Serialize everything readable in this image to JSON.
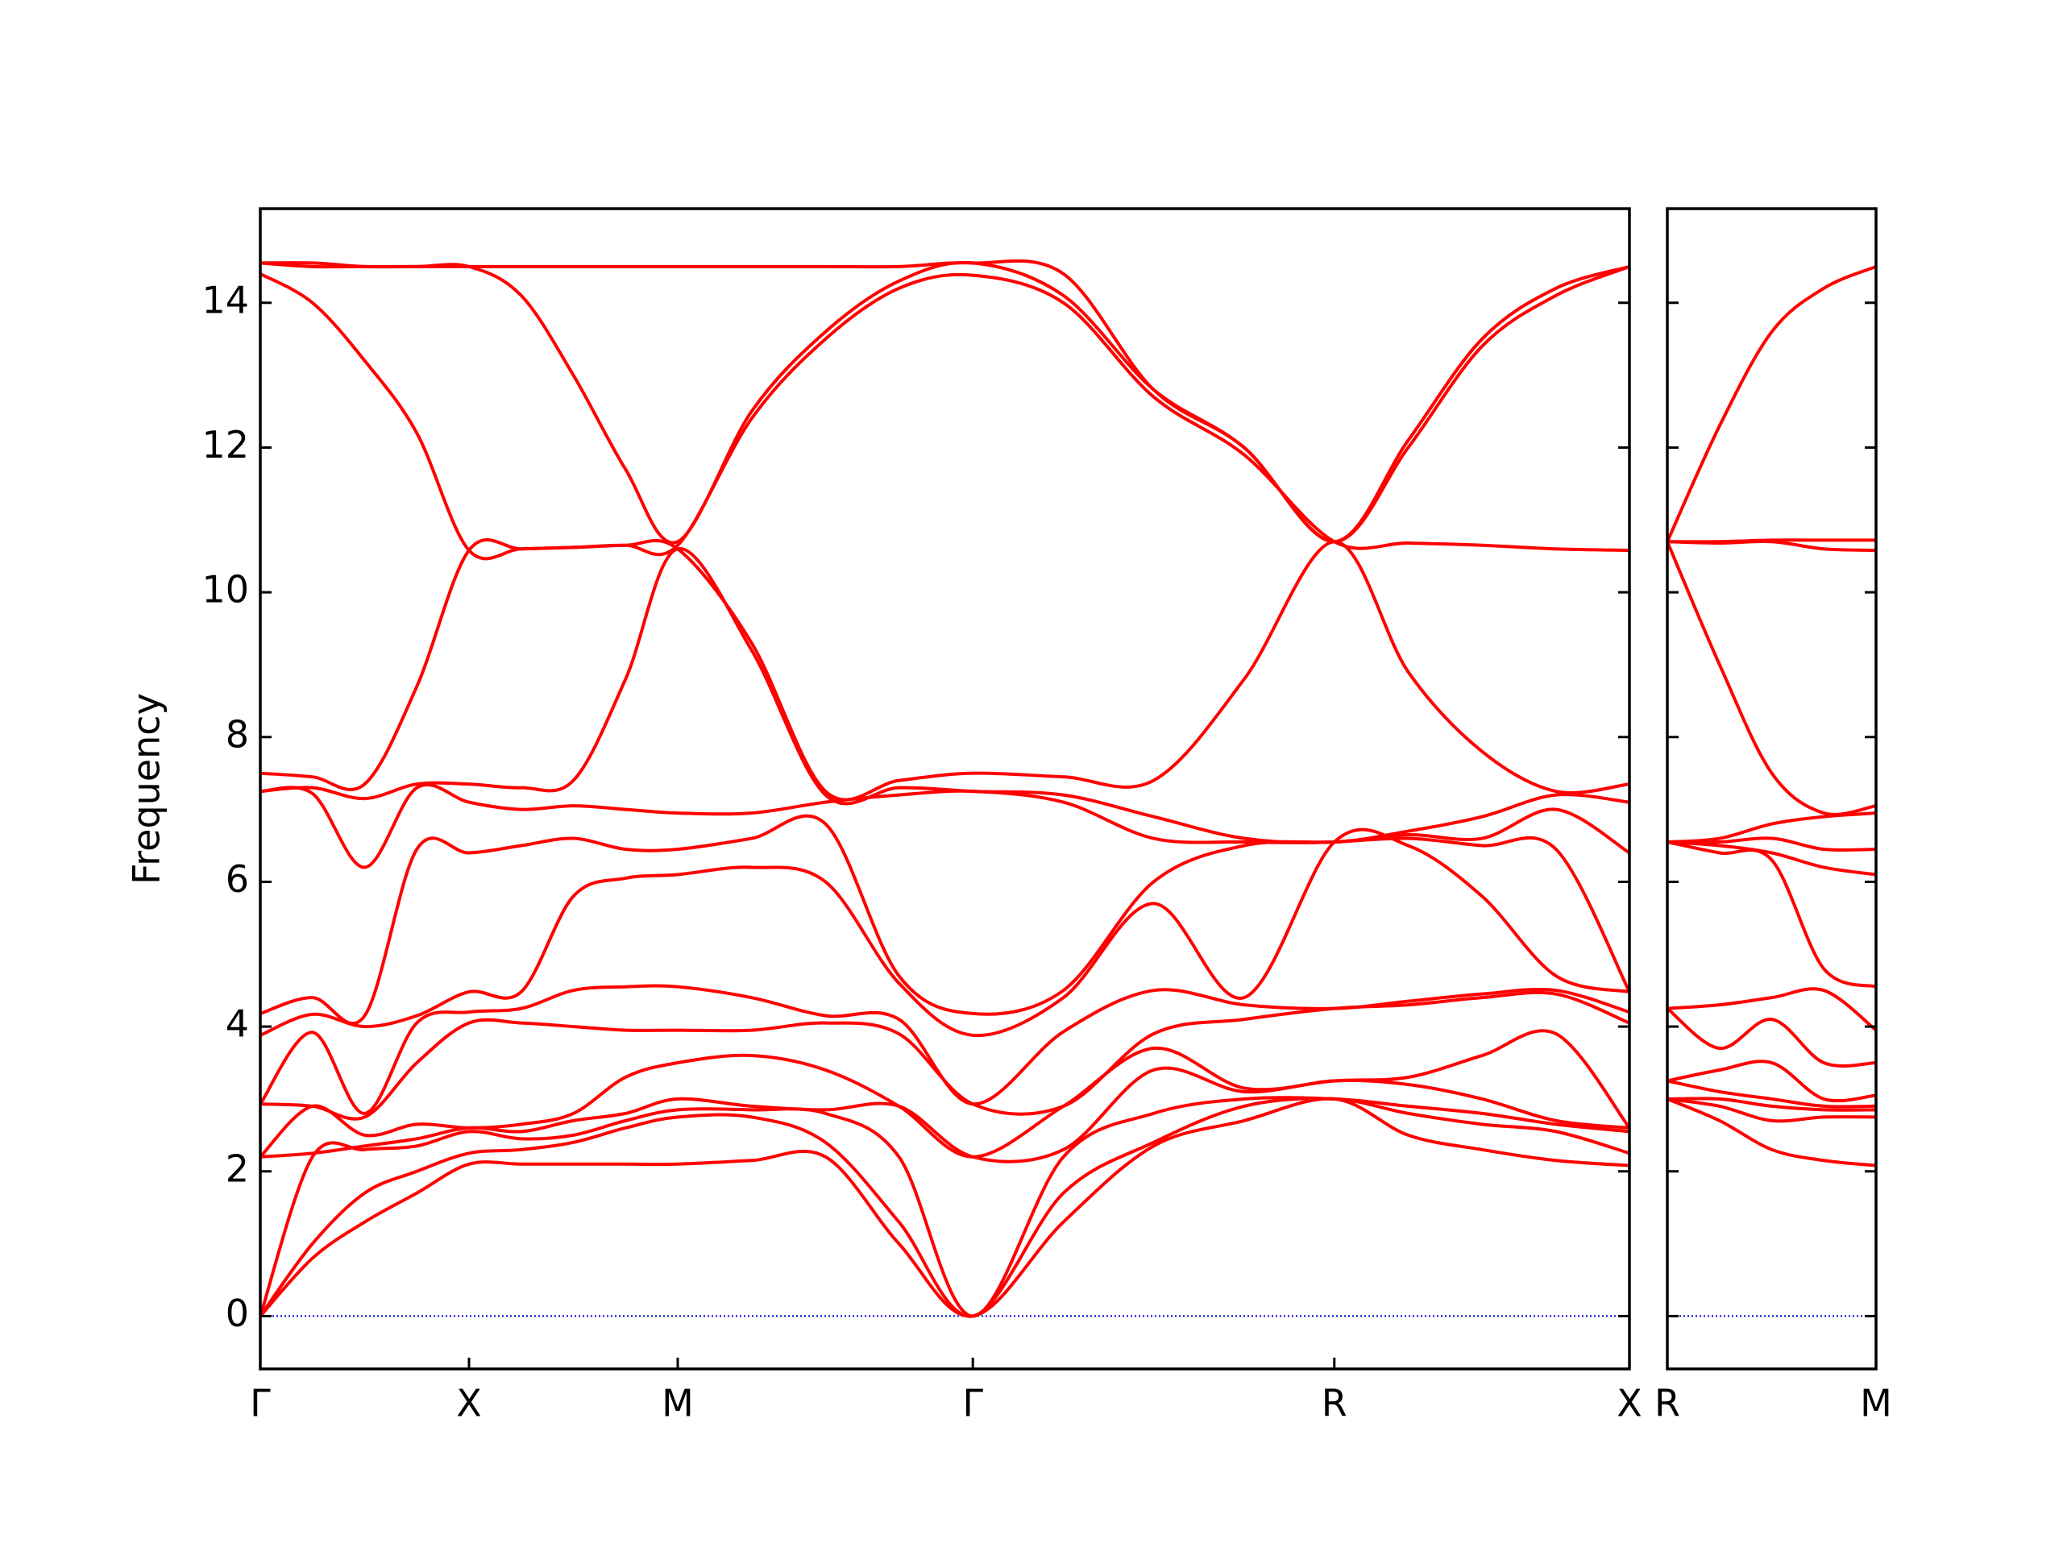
{
  "chart_data": [
    {
      "type": "line",
      "y_label": "Frequency",
      "color": "#ff0000",
      "reference_line": 0,
      "reference_color": "#0000cc",
      "show_ytick_labels": true,
      "xlim": [
        0,
        3.28
      ],
      "ylim": [
        -0.73,
        15.3
      ],
      "xticks": [
        {
          "value": 0,
          "label": "Γ"
        },
        {
          "value": 0.5,
          "label": "X"
        },
        {
          "value": 1.0,
          "label": "M"
        },
        {
          "value": 1.707,
          "label": "Γ"
        },
        {
          "value": 2.573,
          "label": "R"
        },
        {
          "value": 3.28,
          "label": "X"
        }
      ],
      "yticks": [
        0,
        2,
        4,
        6,
        8,
        10,
        12,
        14
      ],
      "x": [
        0,
        0.125,
        0.25,
        0.375,
        0.5,
        0.625,
        0.75,
        0.875,
        1.0,
        1.177,
        1.354,
        1.53,
        1.707,
        1.924,
        2.14,
        2.357,
        2.573,
        2.75,
        2.927,
        3.104,
        3.28
      ],
      "series": [
        {
          "values": [
            0,
            0.8,
            1.3,
            1.7,
            2.1,
            2.1,
            2.1,
            2.1,
            2.1,
            2.15,
            2.2,
            1.0,
            0,
            1.3,
            2.35,
            2.7,
            3.0,
            2.5,
            2.3,
            2.15,
            2.08
          ]
        },
        {
          "values": [
            0,
            1.0,
            1.7,
            2.0,
            2.25,
            2.3,
            2.4,
            2.6,
            2.75,
            2.75,
            2.4,
            1.3,
            0,
            1.7,
            2.4,
            2.9,
            3.0,
            2.8,
            2.65,
            2.55,
            2.25
          ]
        },
        {
          "values": [
            0,
            2.2,
            2.3,
            2.35,
            2.55,
            2.45,
            2.5,
            2.7,
            2.85,
            2.85,
            2.8,
            2.2,
            0,
            2.2,
            2.8,
            3.0,
            3.0,
            2.9,
            2.8,
            2.65,
            2.55
          ]
        },
        {
          "values": [
            2.2,
            2.25,
            2.35,
            2.45,
            2.6,
            2.55,
            2.7,
            2.8,
            3.0,
            2.9,
            2.85,
            2.9,
            2.2,
            2.3,
            3.4,
            3.1,
            3.25,
            3.2,
            3.0,
            2.7,
            2.6
          ]
        },
        {
          "values": [
            2.2,
            2.9,
            2.5,
            2.65,
            2.6,
            2.65,
            2.8,
            3.3,
            3.5,
            3.6,
            3.4,
            2.9,
            2.2,
            2.9,
            3.7,
            3.15,
            3.25,
            3.3,
            3.6,
            3.9,
            2.6
          ]
        },
        {
          "values": [
            2.93,
            2.9,
            2.75,
            3.5,
            4.05,
            4.05,
            4.0,
            3.95,
            3.95,
            3.95,
            4.05,
            3.9,
            2.93,
            2.9,
            3.9,
            4.1,
            4.25,
            4.3,
            4.4,
            4.45,
            4.05
          ]
        },
        {
          "values": [
            2.93,
            3.92,
            2.8,
            4.05,
            4.2,
            4.25,
            4.5,
            4.55,
            4.55,
            4.4,
            4.15,
            4.1,
            2.93,
            3.93,
            4.5,
            4.3,
            4.25,
            4.35,
            4.45,
            4.5,
            4.2
          ]
        },
        {
          "values": [
            3.88,
            4.17,
            4.0,
            4.15,
            4.48,
            4.48,
            5.8,
            6.05,
            6.1,
            6.2,
            6.0,
            4.6,
            3.88,
            4.4,
            5.7,
            4.4,
            6.55,
            6.5,
            5.8,
            4.7,
            4.48
          ]
        },
        {
          "values": [
            4.18,
            4.4,
            4.15,
            6.45,
            6.4,
            6.5,
            6.6,
            6.45,
            6.45,
            6.6,
            6.8,
            4.7,
            4.18,
            4.5,
            6.0,
            6.5,
            6.55,
            6.6,
            6.5,
            6.45,
            4.48
          ]
        },
        {
          "values": [
            7.25,
            7.22,
            6.2,
            7.3,
            7.1,
            7.0,
            7.05,
            7.0,
            6.95,
            6.95,
            7.1,
            7.2,
            7.25,
            7.1,
            6.6,
            6.55,
            6.55,
            6.65,
            6.6,
            7.0,
            6.4
          ]
        },
        {
          "values": [
            7.25,
            7.3,
            7.15,
            7.35,
            7.35,
            7.3,
            7.4,
            8.8,
            10.6,
            9.2,
            7.2,
            7.3,
            7.25,
            7.2,
            6.9,
            6.6,
            6.55,
            6.7,
            6.9,
            7.2,
            7.1
          ]
        },
        {
          "values": [
            7.5,
            7.45,
            7.35,
            8.7,
            10.58,
            10.6,
            10.62,
            10.65,
            10.6,
            9.3,
            7.25,
            7.4,
            7.5,
            7.45,
            7.4,
            8.8,
            10.7,
            8.9,
            7.8,
            7.25,
            7.35
          ]
        },
        {
          "values": [
            14.4,
            14.0,
            13.2,
            12.2,
            10.58,
            10.6,
            10.62,
            10.65,
            10.65,
            12.4,
            13.5,
            14.2,
            14.38,
            14.0,
            12.7,
            11.9,
            10.7,
            10.68,
            10.65,
            10.6,
            10.58
          ]
        },
        {
          "values": [
            14.55,
            14.5,
            14.5,
            14.5,
            14.5,
            14.1,
            13.0,
            11.7,
            10.7,
            12.5,
            13.6,
            14.3,
            14.55,
            14.1,
            12.8,
            12.0,
            10.7,
            12.0,
            13.4,
            14.1,
            14.5
          ]
        },
        {
          "values": [
            14.55,
            14.55,
            14.5,
            14.5,
            14.5,
            14.5,
            14.5,
            14.5,
            14.5,
            14.5,
            14.5,
            14.5,
            14.55,
            14.4,
            12.8,
            12.0,
            10.7,
            12.1,
            13.5,
            14.2,
            14.5
          ]
        }
      ]
    },
    {
      "type": "line",
      "color": "#ff0000",
      "reference_line": 0,
      "reference_color": "#0000cc",
      "show_ytick_labels": false,
      "xlim": [
        0,
        0.707
      ],
      "ylim": [
        -0.73,
        15.3
      ],
      "xticks": [
        {
          "value": 0,
          "label": "R"
        },
        {
          "value": 0.707,
          "label": "M"
        }
      ],
      "yticks": [
        0,
        2,
        4,
        6,
        8,
        10,
        12,
        14
      ],
      "x": [
        0,
        0.177,
        0.354,
        0.53,
        0.707
      ],
      "series": [
        {
          "values": [
            3.0,
            2.7,
            2.3,
            2.15,
            2.08
          ]
        },
        {
          "values": [
            3.0,
            2.9,
            2.7,
            2.75,
            2.75
          ]
        },
        {
          "values": [
            3.0,
            3.0,
            2.9,
            2.85,
            2.85
          ]
        },
        {
          "values": [
            3.25,
            3.1,
            3.0,
            2.9,
            2.9
          ]
        },
        {
          "values": [
            3.25,
            3.4,
            3.5,
            3.0,
            3.05
          ]
        },
        {
          "values": [
            4.25,
            3.7,
            4.1,
            3.5,
            3.5
          ]
        },
        {
          "values": [
            4.25,
            4.3,
            4.4,
            4.5,
            3.95
          ]
        },
        {
          "values": [
            6.55,
            6.4,
            6.3,
            4.8,
            4.55
          ]
        },
        {
          "values": [
            6.55,
            6.5,
            6.4,
            6.2,
            6.1
          ]
        },
        {
          "values": [
            6.55,
            6.55,
            6.6,
            6.45,
            6.45
          ]
        },
        {
          "values": [
            6.55,
            6.6,
            6.8,
            6.9,
            6.95
          ]
        },
        {
          "values": [
            10.7,
            9.0,
            7.5,
            6.95,
            7.05
          ]
        },
        {
          "values": [
            10.7,
            10.68,
            10.7,
            10.6,
            10.58
          ]
        },
        {
          "values": [
            10.7,
            10.7,
            10.72,
            10.72,
            10.72
          ]
        },
        {
          "values": [
            10.7,
            12.3,
            13.6,
            14.2,
            14.5
          ]
        }
      ]
    }
  ]
}
